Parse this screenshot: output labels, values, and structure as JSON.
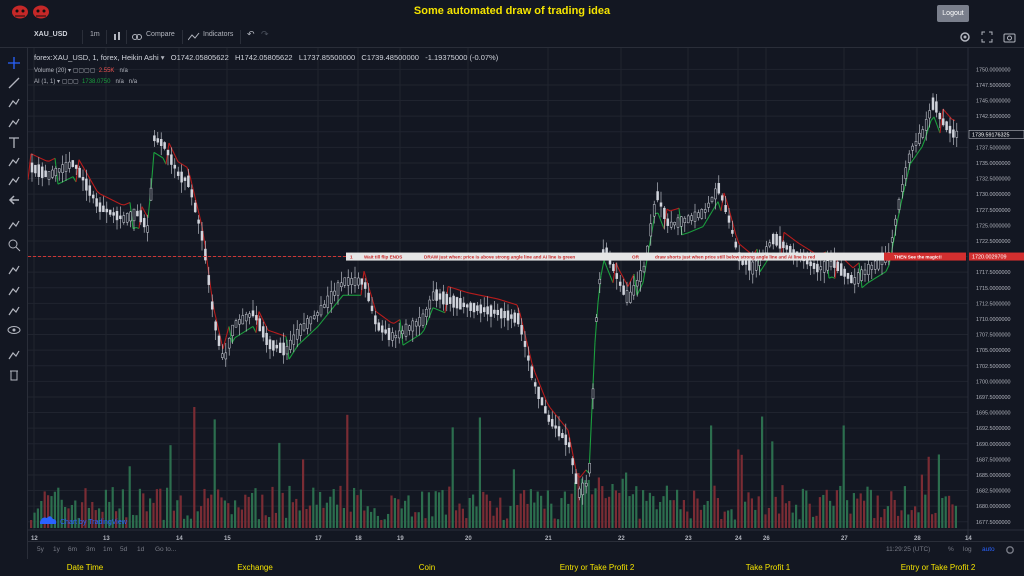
{
  "page": {
    "title": "Some automated draw of trading idea",
    "logout_label": "Logout",
    "logo_color": "#c62828"
  },
  "toolbar": {
    "symbol": "XAU_USD",
    "interval": "1m",
    "compare_label": "Compare",
    "indicators_label": "Indicators"
  },
  "legend": {
    "title": "forex:XAU_USD, 1, forex, Heikin Ashi",
    "open": "O1742.05805622",
    "high": "H1742.05805622",
    "low": "L1737.85500000",
    "close": "C1739.48500000",
    "change": "-1.19375000 (-0.07%)",
    "volume_label": "Volume (20)",
    "volume_value": "2.55K",
    "volume_na": "n/a",
    "ai_label": "AI (1, 1)",
    "ai_value": "1738.0750",
    "ai_na1": "n/a",
    "ai_na2": "n/a"
  },
  "annotation": {
    "text1": "Wait till flip ENDS",
    "text2": "DRAW just when:  price is above strong angle line and AI line is green",
    "text3": "OR",
    "text4": "draw shorts just when price still below strong angle line and AI line is red",
    "text5": "THEN See the magic!!",
    "marker": "1"
  },
  "price_scale": {
    "labels": [
      "1750.0000000",
      "1747.5000000",
      "1745.0000000",
      "1742.5000000",
      "1740.0000000",
      "1737.5000000",
      "1735.0000000",
      "1732.5000000",
      "1730.0000000",
      "1727.5000000",
      "1725.0000000",
      "1722.5000000",
      "1720.0000000",
      "1717.5000000",
      "1715.0000000",
      "1712.5000000",
      "1710.0000000",
      "1707.5000000",
      "1705.0000000",
      "1702.5000000",
      "1700.0000000",
      "1697.5000000",
      "1695.0000000",
      "1692.5000000",
      "1690.0000000",
      "1687.5000000",
      "1685.0000000",
      "1682.5000000",
      "1680.0000000",
      "1677.5000000"
    ],
    "current_price": "1739.59176325",
    "line_price": "1720.0029709"
  },
  "time_scale": {
    "labels": [
      "12",
      "13",
      "14",
      "15",
      "17",
      "18",
      "19",
      "20",
      "21",
      "22",
      "23",
      "24",
      "26",
      "27",
      "28",
      "14"
    ]
  },
  "watermark": "Chart by TradingView",
  "bottom": {
    "ranges": [
      "5y",
      "1y",
      "6m",
      "3m",
      "1m",
      "5d",
      "1d"
    ],
    "goto": "Go to...",
    "time": "11:29:25 (UTC)",
    "percent": "%",
    "log": "log",
    "auto": "auto"
  },
  "footer": {
    "items": [
      "Date Time",
      "Exchange",
      "Coin",
      "Entry or Take Profit 2",
      "Take Profit 1",
      "Entry or Take Profit 2"
    ]
  },
  "colors": {
    "accent": "#f5e400",
    "bull": "#26a69a",
    "bear": "#ef5350",
    "ai_green": "#1b9e3e",
    "ai_red": "#b71c1c",
    "candle": "#d1d4dc"
  }
}
